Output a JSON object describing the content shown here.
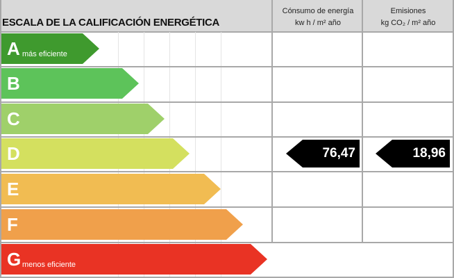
{
  "header": {
    "title": "ESCALA DE LA CALIFICACIÓN ENERGÉTICA",
    "consumo_line1": "Cónsumo de energía",
    "consumo_line2": "kw h / m² año",
    "emisiones_line1": "Emisiones",
    "emisiones_line2": "kg CO₂ / m² año"
  },
  "ratings": [
    {
      "letter": "A",
      "note": "más eficiente",
      "color": "#3f9a2e"
    },
    {
      "letter": "B",
      "note": "",
      "color": "#5dc35a"
    },
    {
      "letter": "C",
      "note": "",
      "color": "#9fd06a"
    },
    {
      "letter": "D",
      "note": "",
      "color": "#d4e05f"
    },
    {
      "letter": "E",
      "note": "",
      "color": "#f1bc52"
    },
    {
      "letter": "F",
      "note": "",
      "color": "#f0a04b"
    },
    {
      "letter": "G",
      "note": "menos eficiente",
      "color": "#e93324"
    }
  ],
  "current": {
    "rating": "D",
    "consumo": "76,47",
    "emisiones": "18,96"
  }
}
